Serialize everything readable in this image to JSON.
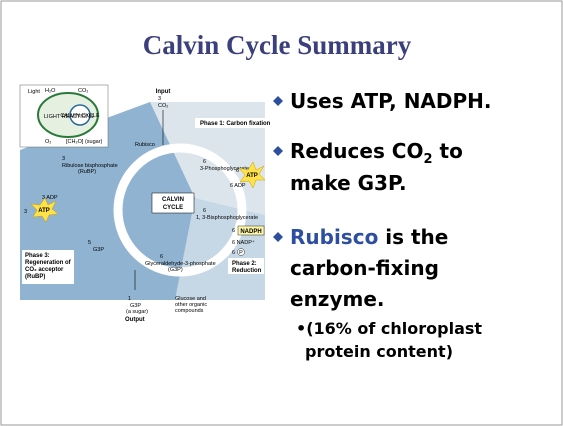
{
  "title": "Calvin Cycle Summary",
  "bullets": [
    {
      "parts": [
        "Uses ATP, NADPH."
      ]
    },
    {
      "parts": [
        "Reduces CO",
        "2",
        " to",
        "make G3P."
      ]
    },
    {
      "parts": [
        "Rubisco",
        " is the",
        "carbon-fixing",
        "enzyme."
      ]
    }
  ],
  "sub_bullet": [
    "•(16% of chloroplast",
    "protein content)"
  ],
  "diagram": {
    "inset": [
      "Light",
      "H₂O",
      "CO₂",
      "LIGHT REACTIONS",
      "CALVIN CYCLE",
      "O₂",
      "[CH₂O] (sugar)"
    ],
    "input": [
      "Input",
      "3",
      "CO₂"
    ],
    "phase1": "Phase 1: Carbon fixation",
    "rubisco": "Rubisco",
    "rubp": [
      "3",
      "Ribulose bisphosphate",
      "(RuBP)"
    ],
    "pga": [
      "6",
      "3-Phosphoglycerate"
    ],
    "atp_right": [
      "6",
      "ATP",
      "6 ADP"
    ],
    "center": [
      "CALVIN",
      "CYCLE"
    ],
    "bpg": [
      "6",
      "1, 3-Bisphosphoglycerate"
    ],
    "nadph": [
      "6",
      "NADPH",
      "6 NADP⁺",
      "6",
      "P"
    ],
    "left_atp": [
      "3 ADP",
      "3",
      "ATP"
    ],
    "g3p_left": [
      "5",
      "G3P"
    ],
    "g3p": [
      "6",
      "Glyceraldehyde-3-phosphate",
      "(G3P)"
    ],
    "phase2": [
      "Phase 2:",
      "Reduction"
    ],
    "phase3": [
      "Phase 3:",
      "Regeneration of",
      "CO₂ acceptor",
      "(RuBP)"
    ],
    "output": [
      "1",
      "G3P",
      "(a sugar)",
      "Output",
      "Glucose and",
      "other organic",
      "compounds"
    ]
  }
}
